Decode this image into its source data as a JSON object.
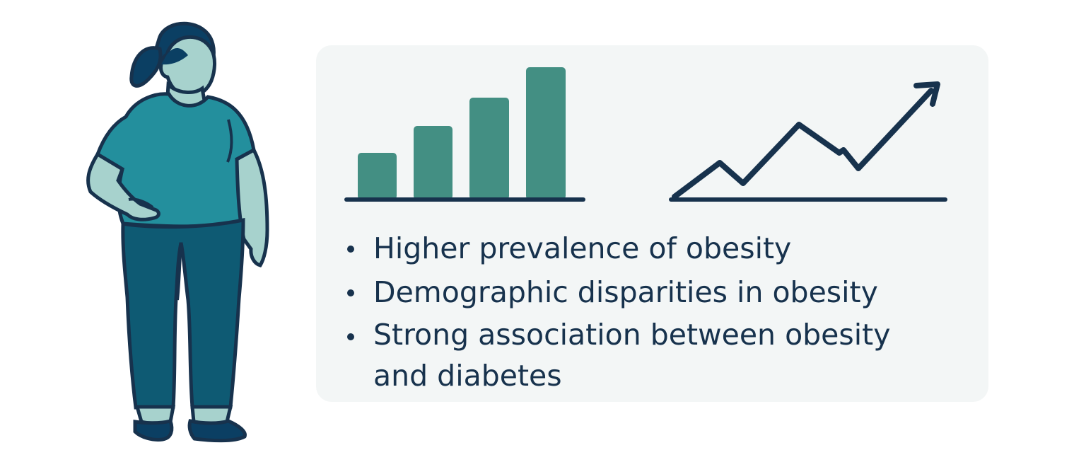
{
  "illustration": {
    "figure_icon": "standing-person-icon",
    "bar_chart_icon": "bar-chart-icon",
    "trend_icon": "upward-trend-arrow-icon"
  },
  "colors": {
    "panel_background": "#f3f6f6",
    "dark_navy": "#17324d",
    "bar_green": "#438f83",
    "shirt_teal": "#238f9d",
    "pants_dark_teal": "#0e5a73",
    "skin_light": "#a7d2cd"
  },
  "bullets": [
    "Higher prevalence of obesity",
    "Demographic disparities in obesity",
    "Strong association between obesity and diabetes"
  ]
}
